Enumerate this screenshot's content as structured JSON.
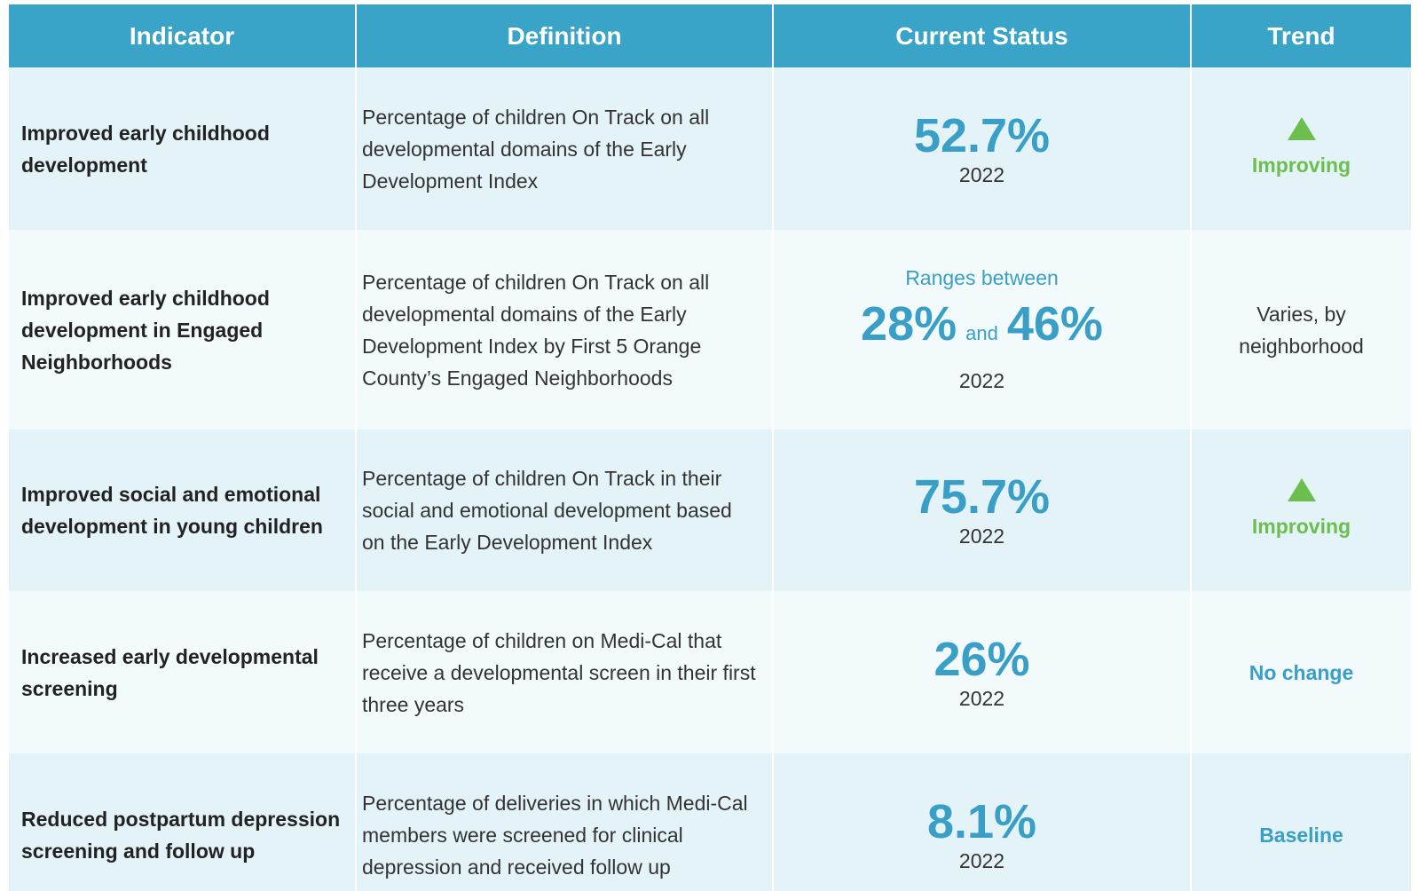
{
  "table": {
    "headers": [
      "Indicator",
      "Definition",
      "Current Status",
      "Trend"
    ],
    "rows": [
      {
        "indicator": "Improved early childhood development",
        "definition": "Percentage of children On Track on all developmental domains of the Early Development Index",
        "status": "52.7%",
        "year": "2022",
        "trend": "Improving"
      },
      {
        "indicator": "Improved early childhood development in Engaged Neighborhoods",
        "definition": "Percentage of children On Track on all developmental domains of the Early Development Index by First 5 Orange County’s Engaged Neighborhoods",
        "status_prefix": "Ranges between",
        "status_low": "28%",
        "status_joiner": "and",
        "status_high": "46%",
        "year": "2022",
        "trend": "Varies, by neighborhood"
      },
      {
        "indicator": "Improved social and emotional development in young children",
        "definition": "Percentage of children On Track in their social and emotional development based on the Early Development Index",
        "status": "75.7%",
        "year": "2022",
        "trend": "Improving"
      },
      {
        "indicator": "Increased early developmental screening",
        "definition": "Percentage of children on Medi-Cal that receive a developmental screen in their first three years",
        "status": "26%",
        "year": "2022",
        "trend": "No change"
      },
      {
        "indicator": "Reduced postpartum depression screening and follow up",
        "definition": "Percentage of deliveries in which Medi-Cal members were screened for clinical depression and received follow up",
        "status": "8.1%",
        "year": "2022",
        "trend": "Baseline"
      }
    ]
  }
}
